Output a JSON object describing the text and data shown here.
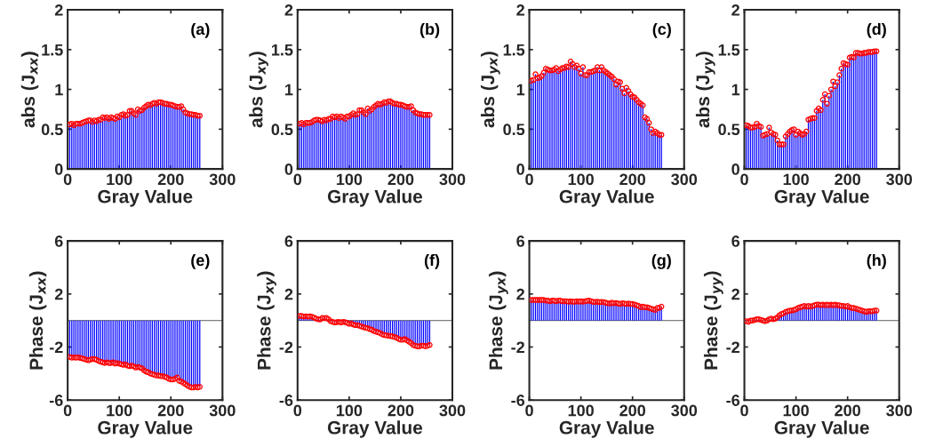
{
  "chart_data": [
    {
      "type": "lollipop",
      "xlabel": "Gray Value",
      "ylabel": "abs (J$_{xx}$)",
      "annotations": [
        "(a)"
      ],
      "xlim": [
        0,
        300
      ],
      "xticks": [
        0,
        100,
        200,
        300
      ],
      "ylim": [
        0,
        2
      ],
      "yticks": [
        0,
        0.5,
        1,
        1.5,
        2
      ],
      "marker": "circle",
      "grid": false,
      "x": [
        4,
        8,
        12,
        16,
        20,
        24,
        28,
        32,
        36,
        40,
        44,
        48,
        52,
        56,
        60,
        64,
        68,
        72,
        76,
        80,
        84,
        88,
        92,
        96,
        100,
        104,
        108,
        112,
        116,
        120,
        124,
        128,
        132,
        136,
        140,
        144,
        148,
        152,
        156,
        160,
        164,
        168,
        172,
        176,
        180,
        184,
        188,
        192,
        196,
        200,
        204,
        208,
        212,
        216,
        220,
        224,
        228,
        232,
        236,
        240,
        244,
        248,
        252,
        256
      ],
      "series": [
        {
          "color": "#ff0000",
          "values": [
            0.56,
            0.57,
            0.55,
            0.57,
            0.57,
            0.57,
            0.58,
            0.59,
            0.6,
            0.61,
            0.61,
            0.59,
            0.61,
            0.6,
            0.62,
            0.62,
            0.65,
            0.64,
            0.65,
            0.63,
            0.65,
            0.64,
            0.63,
            0.66,
            0.65,
            0.68,
            0.69,
            0.67,
            0.68,
            0.73,
            0.73,
            0.7,
            0.68,
            0.75,
            0.73,
            0.74,
            0.77,
            0.79,
            0.81,
            0.8,
            0.82,
            0.83,
            0.82,
            0.84,
            0.84,
            0.83,
            0.82,
            0.82,
            0.81,
            0.81,
            0.8,
            0.79,
            0.78,
            0.78,
            0.79,
            0.75,
            0.71,
            0.7,
            0.69,
            0.69,
            0.68,
            0.68,
            0.67,
            0.67
          ]
        }
      ]
    },
    {
      "type": "lollipop",
      "xlabel": "Gray Value",
      "ylabel": "abs (J$_{xy}$)",
      "annotations": [
        "(b)"
      ],
      "xlim": [
        0,
        300
      ],
      "xticks": [
        0,
        100,
        200,
        300
      ],
      "ylim": [
        0,
        2
      ],
      "yticks": [
        0,
        0.5,
        1,
        1.5,
        2
      ],
      "marker": "circle",
      "grid": false,
      "x": [
        4,
        8,
        12,
        16,
        20,
        24,
        28,
        32,
        36,
        40,
        44,
        48,
        52,
        56,
        60,
        64,
        68,
        72,
        76,
        80,
        84,
        88,
        92,
        96,
        100,
        104,
        108,
        112,
        116,
        120,
        124,
        128,
        132,
        136,
        140,
        144,
        148,
        152,
        156,
        160,
        164,
        168,
        172,
        176,
        180,
        184,
        188,
        192,
        196,
        200,
        204,
        208,
        212,
        216,
        220,
        224,
        228,
        232,
        236,
        240,
        244,
        248,
        252,
        256
      ],
      "series": [
        {
          "color": "#ff0000",
          "values": [
            0.57,
            0.58,
            0.56,
            0.58,
            0.58,
            0.58,
            0.59,
            0.61,
            0.62,
            0.62,
            0.61,
            0.6,
            0.62,
            0.61,
            0.63,
            0.63,
            0.66,
            0.65,
            0.66,
            0.64,
            0.66,
            0.65,
            0.63,
            0.66,
            0.66,
            0.68,
            0.7,
            0.68,
            0.69,
            0.74,
            0.74,
            0.71,
            0.69,
            0.76,
            0.73,
            0.75,
            0.78,
            0.8,
            0.82,
            0.81,
            0.82,
            0.84,
            0.83,
            0.85,
            0.85,
            0.83,
            0.82,
            0.82,
            0.81,
            0.81,
            0.8,
            0.79,
            0.78,
            0.78,
            0.79,
            0.74,
            0.71,
            0.7,
            0.69,
            0.69,
            0.68,
            0.68,
            0.68,
            0.68
          ]
        }
      ]
    },
    {
      "type": "lollipop",
      "xlabel": "Gray Value",
      "ylabel": "abs (J$_{yx}$)",
      "annotations": [
        "(c)"
      ],
      "xlim": [
        0,
        300
      ],
      "xticks": [
        0,
        100,
        200,
        300
      ],
      "ylim": [
        0,
        2
      ],
      "yticks": [
        0,
        0.5,
        1,
        1.5,
        2
      ],
      "marker": "circle",
      "grid": false,
      "x": [
        4,
        8,
        12,
        16,
        20,
        24,
        28,
        32,
        36,
        40,
        44,
        48,
        52,
        56,
        60,
        64,
        68,
        72,
        76,
        80,
        84,
        88,
        92,
        96,
        100,
        104,
        108,
        112,
        116,
        120,
        124,
        128,
        132,
        136,
        140,
        144,
        148,
        152,
        156,
        160,
        164,
        168,
        172,
        176,
        180,
        184,
        188,
        192,
        196,
        200,
        204,
        208,
        212,
        216,
        220,
        224,
        228,
        232,
        236,
        240,
        244,
        248,
        252,
        256
      ],
      "series": [
        {
          "color": "#ff0000",
          "values": [
            1.11,
            1.12,
            1.19,
            1.14,
            1.15,
            1.17,
            1.21,
            1.26,
            1.25,
            1.24,
            1.24,
            1.25,
            1.27,
            1.23,
            1.25,
            1.27,
            1.27,
            1.29,
            1.28,
            1.35,
            1.32,
            1.28,
            1.3,
            1.26,
            1.2,
            1.28,
            1.18,
            1.18,
            1.22,
            1.22,
            1.23,
            1.24,
            1.28,
            1.24,
            1.28,
            1.24,
            1.22,
            1.2,
            1.18,
            1.16,
            1.13,
            1.06,
            1.1,
            1.09,
            1.01,
            0.95,
            1.02,
            0.98,
            0.94,
            0.91,
            0.9,
            0.87,
            0.84,
            0.82,
            0.8,
            0.65,
            0.63,
            0.58,
            0.5,
            0.45,
            0.47,
            0.45,
            0.43,
            0.43
          ]
        }
      ]
    },
    {
      "type": "lollipop",
      "xlabel": "Gray Value",
      "ylabel": "abs (J$_{yy}$)",
      "annotations": [
        "(d)"
      ],
      "xlim": [
        0,
        300
      ],
      "xticks": [
        0,
        100,
        200,
        300
      ],
      "ylim": [
        0,
        2
      ],
      "yticks": [
        0,
        0.5,
        1,
        1.5,
        2
      ],
      "marker": "circle",
      "grid": false,
      "x": [
        4,
        8,
        12,
        16,
        20,
        24,
        28,
        32,
        36,
        40,
        44,
        48,
        52,
        56,
        60,
        64,
        68,
        72,
        76,
        80,
        84,
        88,
        92,
        96,
        100,
        104,
        108,
        112,
        116,
        120,
        124,
        128,
        132,
        136,
        140,
        144,
        148,
        152,
        156,
        160,
        164,
        168,
        172,
        176,
        180,
        184,
        188,
        192,
        196,
        200,
        204,
        208,
        212,
        216,
        220,
        224,
        228,
        232,
        236,
        240,
        244,
        248,
        252,
        256
      ],
      "series": [
        {
          "color": "#ff0000",
          "values": [
            0.55,
            0.54,
            0.52,
            0.52,
            0.53,
            0.57,
            0.54,
            0.53,
            0.42,
            0.43,
            0.44,
            0.52,
            0.46,
            0.44,
            0.43,
            0.36,
            0.31,
            0.31,
            0.31,
            0.41,
            0.44,
            0.47,
            0.49,
            0.5,
            0.43,
            0.47,
            0.45,
            0.43,
            0.44,
            0.47,
            0.62,
            0.63,
            0.64,
            0.64,
            0.73,
            0.76,
            0.74,
            0.87,
            0.94,
            0.82,
            0.92,
            1.0,
            1.1,
            1.04,
            1.09,
            1.18,
            1.26,
            1.33,
            1.32,
            1.31,
            1.4,
            1.41,
            1.4,
            1.46,
            1.46,
            1.45,
            1.45,
            1.46,
            1.46,
            1.47,
            1.47,
            1.47,
            1.48,
            1.48
          ]
        }
      ]
    },
    {
      "type": "lollipop",
      "xlabel": "Gray Value",
      "ylabel": "Phase (J$_{xx}$)",
      "annotations": [
        "(e)"
      ],
      "xlim": [
        0,
        300
      ],
      "xticks": [
        0,
        100,
        200,
        300
      ],
      "ylim": [
        -6,
        6
      ],
      "yticks": [
        -6,
        -2,
        2,
        6
      ],
      "marker": "circle",
      "grid": false,
      "ref_lines": [
        {
          "axis": "y",
          "value": 0,
          "color": "#808080"
        }
      ],
      "x": [
        4,
        8,
        12,
        16,
        20,
        24,
        28,
        32,
        36,
        40,
        44,
        48,
        52,
        56,
        60,
        64,
        68,
        72,
        76,
        80,
        84,
        88,
        92,
        96,
        100,
        104,
        108,
        112,
        116,
        120,
        124,
        128,
        132,
        136,
        140,
        144,
        148,
        152,
        156,
        160,
        164,
        168,
        172,
        176,
        180,
        184,
        188,
        192,
        196,
        200,
        204,
        208,
        212,
        216,
        220,
        224,
        228,
        232,
        236,
        240,
        244,
        248,
        252,
        256
      ],
      "series": [
        {
          "color": "#ff0000",
          "values": [
            -2.75,
            -2.8,
            -2.78,
            -2.8,
            -2.78,
            -2.82,
            -2.85,
            -2.9,
            -2.95,
            -3.0,
            -2.95,
            -2.9,
            -2.92,
            -2.95,
            -3.05,
            -3.1,
            -3.15,
            -3.2,
            -3.15,
            -3.2,
            -3.2,
            -3.15,
            -3.25,
            -3.2,
            -3.25,
            -3.3,
            -3.35,
            -3.3,
            -3.4,
            -3.45,
            -3.4,
            -3.45,
            -3.55,
            -3.5,
            -3.55,
            -3.6,
            -3.75,
            -3.85,
            -3.9,
            -4.0,
            -4.05,
            -4.1,
            -4.15,
            -4.15,
            -4.2,
            -4.2,
            -4.25,
            -4.3,
            -4.4,
            -4.45,
            -4.45,
            -4.4,
            -4.3,
            -4.55,
            -4.6,
            -4.7,
            -4.8,
            -4.9,
            -5.0,
            -5.05,
            -5.05,
            -5.0,
            -5.05,
            -5.0
          ]
        }
      ]
    },
    {
      "type": "lollipop",
      "xlabel": "Gray Value",
      "ylabel": "Phase (J$_{xy}$)",
      "annotations": [
        "(f)"
      ],
      "xlim": [
        0,
        300
      ],
      "xticks": [
        0,
        100,
        200,
        300
      ],
      "ylim": [
        -6,
        6
      ],
      "yticks": [
        -6,
        -2,
        2,
        6
      ],
      "marker": "circle",
      "grid": false,
      "ref_lines": [
        {
          "axis": "y",
          "value": 0,
          "color": "#808080"
        }
      ],
      "x": [
        4,
        8,
        12,
        16,
        20,
        24,
        28,
        32,
        36,
        40,
        44,
        48,
        52,
        56,
        60,
        64,
        68,
        72,
        76,
        80,
        84,
        88,
        92,
        96,
        100,
        104,
        108,
        112,
        116,
        120,
        124,
        128,
        132,
        136,
        140,
        144,
        148,
        152,
        156,
        160,
        164,
        168,
        172,
        176,
        180,
        184,
        188,
        192,
        196,
        200,
        204,
        208,
        212,
        216,
        220,
        224,
        228,
        232,
        236,
        240,
        244,
        248,
        252,
        256
      ],
      "series": [
        {
          "color": "#ff0000",
          "values": [
            0.35,
            0.35,
            0.3,
            0.32,
            0.3,
            0.32,
            0.28,
            0.22,
            0.15,
            0.1,
            0.08,
            0.2,
            0.18,
            0.2,
            0.1,
            -0.05,
            -0.1,
            -0.15,
            -0.12,
            -0.1,
            -0.15,
            -0.1,
            -0.12,
            -0.18,
            -0.25,
            -0.22,
            -0.3,
            -0.35,
            -0.35,
            -0.4,
            -0.45,
            -0.5,
            -0.55,
            -0.58,
            -0.65,
            -0.7,
            -0.8,
            -0.85,
            -0.9,
            -0.95,
            -1.05,
            -1.1,
            -1.12,
            -1.15,
            -1.18,
            -1.2,
            -1.25,
            -1.3,
            -1.4,
            -1.45,
            -1.45,
            -1.4,
            -1.5,
            -1.6,
            -1.7,
            -1.85,
            -1.9,
            -1.95,
            -1.95,
            -1.9,
            -1.9,
            -1.95,
            -1.9,
            -1.85
          ]
        }
      ]
    },
    {
      "type": "lollipop",
      "xlabel": "Gray Value",
      "ylabel": "Phase (J$_{yx}$)",
      "annotations": [
        "(g)"
      ],
      "xlim": [
        0,
        300
      ],
      "xticks": [
        0,
        100,
        200,
        300
      ],
      "ylim": [
        -6,
        6
      ],
      "yticks": [
        -6,
        -2,
        2,
        6
      ],
      "marker": "circle",
      "grid": false,
      "ref_lines": [
        {
          "axis": "y",
          "value": 0,
          "color": "#808080"
        }
      ],
      "x": [
        4,
        8,
        12,
        16,
        20,
        24,
        28,
        32,
        36,
        40,
        44,
        48,
        52,
        56,
        60,
        64,
        68,
        72,
        76,
        80,
        84,
        88,
        92,
        96,
        100,
        104,
        108,
        112,
        116,
        120,
        124,
        128,
        132,
        136,
        140,
        144,
        148,
        152,
        156,
        160,
        164,
        168,
        172,
        176,
        180,
        184,
        188,
        192,
        196,
        200,
        204,
        208,
        212,
        216,
        220,
        224,
        228,
        232,
        236,
        240,
        244,
        248,
        252,
        256
      ],
      "series": [
        {
          "color": "#ff0000",
          "values": [
            1.55,
            1.55,
            1.55,
            1.55,
            1.55,
            1.55,
            1.55,
            1.5,
            1.5,
            1.45,
            1.5,
            1.5,
            1.45,
            1.5,
            1.5,
            1.45,
            1.45,
            1.45,
            1.42,
            1.45,
            1.42,
            1.42,
            1.45,
            1.42,
            1.45,
            1.42,
            1.45,
            1.48,
            1.5,
            1.45,
            1.4,
            1.4,
            1.42,
            1.38,
            1.4,
            1.38,
            1.35,
            1.3,
            1.28,
            1.35,
            1.3,
            1.32,
            1.28,
            1.25,
            1.3,
            1.28,
            1.25,
            1.28,
            1.25,
            1.25,
            1.2,
            1.15,
            1.1,
            1.0,
            1.05,
            1.0,
            1.0,
            0.95,
            0.9,
            0.85,
            0.8,
            0.95,
            0.95,
            1.05
          ]
        }
      ]
    },
    {
      "type": "lollipop",
      "xlabel": "Gray Value",
      "ylabel": "Phase (J$_{yy}$)",
      "annotations": [
        "(h)"
      ],
      "xlim": [
        0,
        300
      ],
      "xticks": [
        0,
        100,
        200,
        300
      ],
      "ylim": [
        -6,
        6
      ],
      "yticks": [
        -6,
        -2,
        2,
        6
      ],
      "marker": "circle",
      "grid": false,
      "ref_lines": [
        {
          "axis": "y",
          "value": 0,
          "color": "#808080"
        }
      ],
      "x": [
        4,
        8,
        12,
        16,
        20,
        24,
        28,
        32,
        36,
        40,
        44,
        48,
        52,
        56,
        60,
        64,
        68,
        72,
        76,
        80,
        84,
        88,
        92,
        96,
        100,
        104,
        108,
        112,
        116,
        120,
        124,
        128,
        132,
        136,
        140,
        144,
        148,
        152,
        156,
        160,
        164,
        168,
        172,
        176,
        180,
        184,
        188,
        192,
        196,
        200,
        204,
        208,
        212,
        216,
        220,
        224,
        228,
        232,
        236,
        240,
        244,
        248,
        252,
        256
      ],
      "series": [
        {
          "color": "#ff0000",
          "values": [
            -0.05,
            -0.1,
            0.0,
            0.0,
            0.05,
            0.1,
            0.1,
            0.05,
            0.0,
            -0.05,
            0.0,
            0.1,
            0.15,
            0.1,
            0.15,
            0.25,
            0.4,
            0.5,
            0.55,
            0.65,
            0.7,
            0.75,
            0.75,
            0.8,
            0.85,
            0.95,
            1.0,
            1.05,
            1.1,
            1.05,
            1.1,
            1.05,
            1.1,
            1.15,
            1.2,
            1.2,
            1.15,
            1.2,
            1.15,
            1.2,
            1.15,
            1.2,
            1.15,
            1.2,
            1.15,
            1.15,
            1.1,
            1.1,
            1.05,
            1.1,
            1.0,
            0.95,
            0.95,
            0.9,
            0.85,
            0.8,
            0.75,
            0.7,
            0.65,
            0.7,
            0.7,
            0.7,
            0.75,
            0.75
          ]
        }
      ]
    }
  ]
}
